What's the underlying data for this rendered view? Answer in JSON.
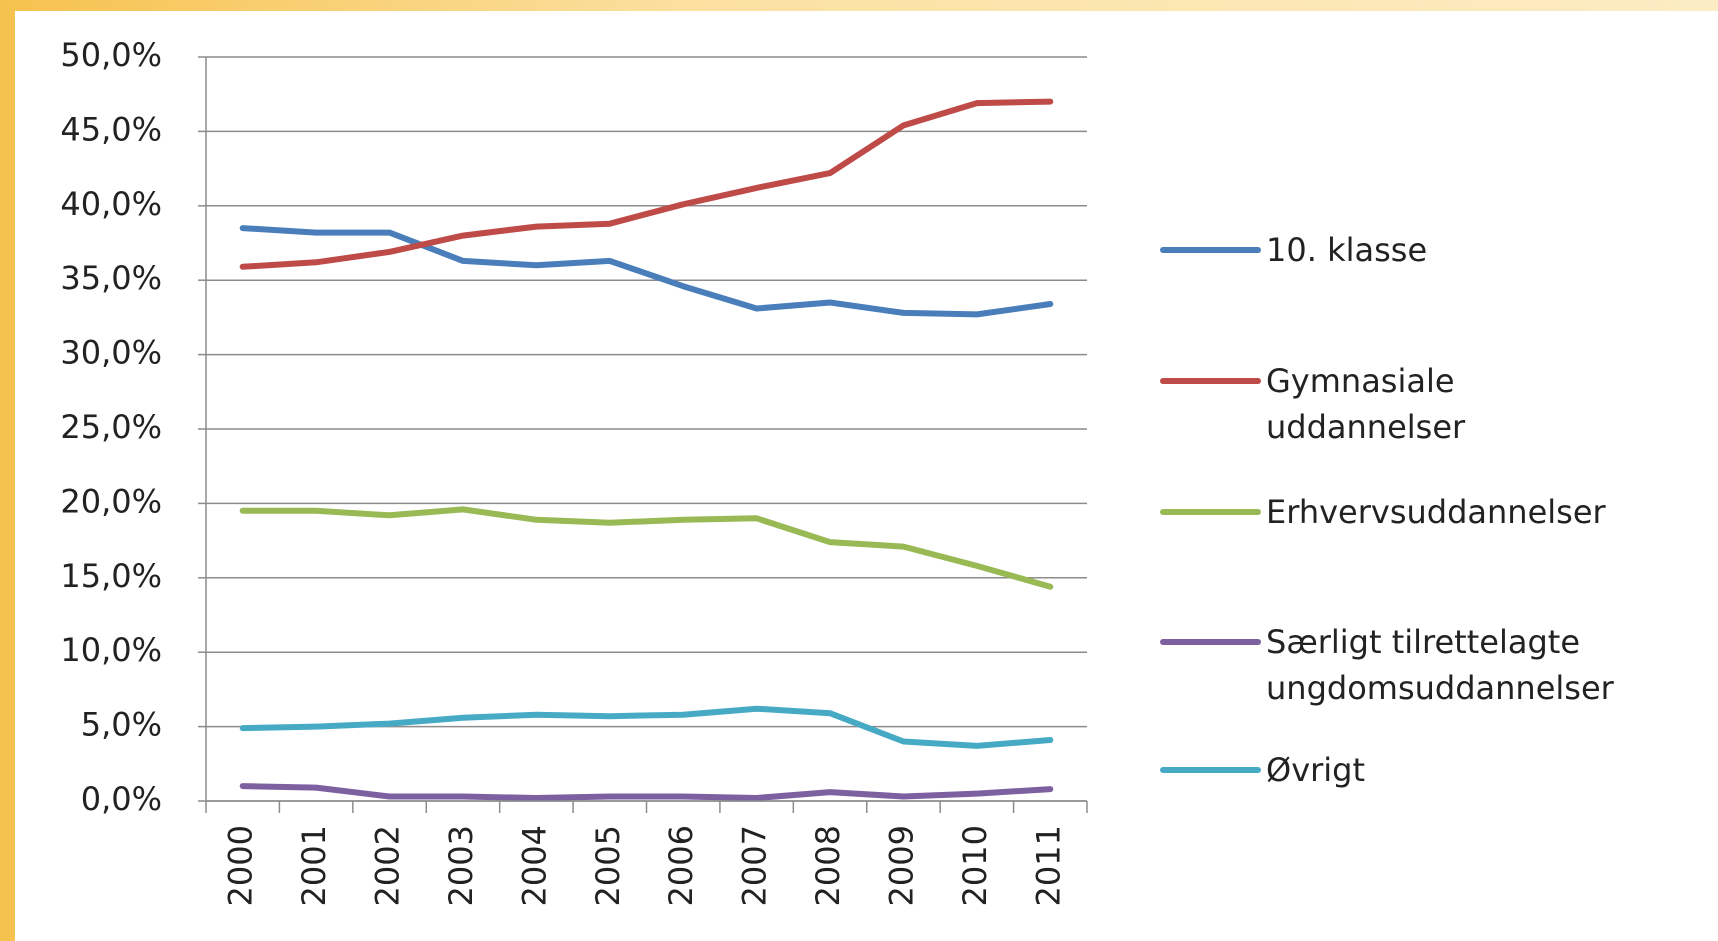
{
  "chart_data": {
    "type": "line",
    "categories": [
      "2000",
      "2001",
      "2002",
      "2003",
      "2004",
      "2005",
      "2006",
      "2007",
      "2008",
      "2009",
      "2010",
      "2011"
    ],
    "series": [
      {
        "name": "10. klasse",
        "color": "#4a7ebb",
        "values": [
          38.5,
          38.2,
          38.2,
          36.3,
          36.0,
          36.3,
          34.6,
          33.1,
          33.5,
          32.8,
          32.7,
          33.4
        ]
      },
      {
        "name": "Gymnasiale uddannelser",
        "color": "#be4b48",
        "values": [
          35.9,
          36.2,
          36.9,
          38.0,
          38.6,
          38.8,
          40.1,
          41.2,
          42.2,
          45.4,
          46.9,
          47.0
        ]
      },
      {
        "name": "Erhvervsuddannelser",
        "color": "#98b954",
        "values": [
          19.5,
          19.5,
          19.2,
          19.6,
          18.9,
          18.7,
          18.9,
          19.0,
          17.4,
          17.1,
          15.8,
          14.4
        ]
      },
      {
        "name": "Særligt tilrettelagte ungdomsuddannelser",
        "color": "#7d60a0",
        "values": [
          1.0,
          0.9,
          0.3,
          0.3,
          0.2,
          0.3,
          0.3,
          0.2,
          0.6,
          0.3,
          0.5,
          0.8
        ]
      },
      {
        "name": "Øvrigt",
        "color": "#46aac5",
        "values": [
          4.9,
          5.0,
          5.2,
          5.6,
          5.8,
          5.7,
          5.8,
          6.2,
          5.9,
          4.0,
          3.7,
          4.1
        ]
      }
    ],
    "ylim": [
      0,
      50
    ],
    "yticks": [
      {
        "value": 0,
        "label": "0,0%"
      },
      {
        "value": 5,
        "label": "5,0%"
      },
      {
        "value": 10,
        "label": "10,0%"
      },
      {
        "value": 15,
        "label": "15,0%"
      },
      {
        "value": 20,
        "label": "20,0%"
      },
      {
        "value": 25,
        "label": "25,0%"
      },
      {
        "value": 30,
        "label": "30,0%"
      },
      {
        "value": 35,
        "label": "35,0%"
      },
      {
        "value": 40,
        "label": "40,0%"
      },
      {
        "value": 45,
        "label": "45,0%"
      },
      {
        "value": 50,
        "label": "50,0%"
      }
    ],
    "grid": true
  }
}
